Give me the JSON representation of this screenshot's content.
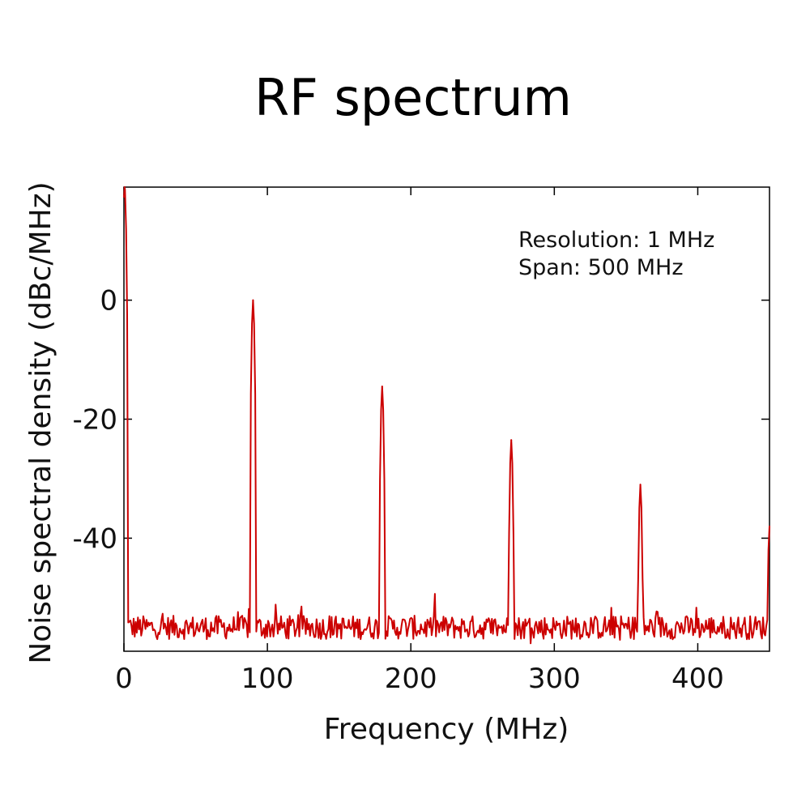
{
  "chart_data": {
    "type": "line",
    "title": "RF spectrum",
    "xlabel": "Frequency (MHz)",
    "ylabel": "Noise spectral density (dBc/MHz)",
    "xlim": [
      0,
      450
    ],
    "ylim": [
      -59,
      19
    ],
    "x_ticks": [
      0,
      100,
      200,
      300,
      400
    ],
    "x_tick_labels": [
      "0",
      "100",
      "200",
      "300",
      "400"
    ],
    "y_ticks": [
      0,
      -20,
      -40
    ],
    "y_tick_labels": [
      "0",
      "-20",
      "-40"
    ],
    "grid": false,
    "line_color": "#cc0000",
    "noise_floor": -55,
    "annotations": [
      "Resolution: 1 MHz",
      "Span: 500 MHz"
    ],
    "series": [
      {
        "peaks": [
          {
            "x": 0.5,
            "y": 19
          },
          {
            "x": 90,
            "y": 0
          },
          {
            "x": 180,
            "y": -14.5
          },
          {
            "x": 270,
            "y": -23.5
          },
          {
            "x": 360,
            "y": -31
          },
          {
            "x": 450,
            "y": -38
          }
        ]
      }
    ]
  }
}
